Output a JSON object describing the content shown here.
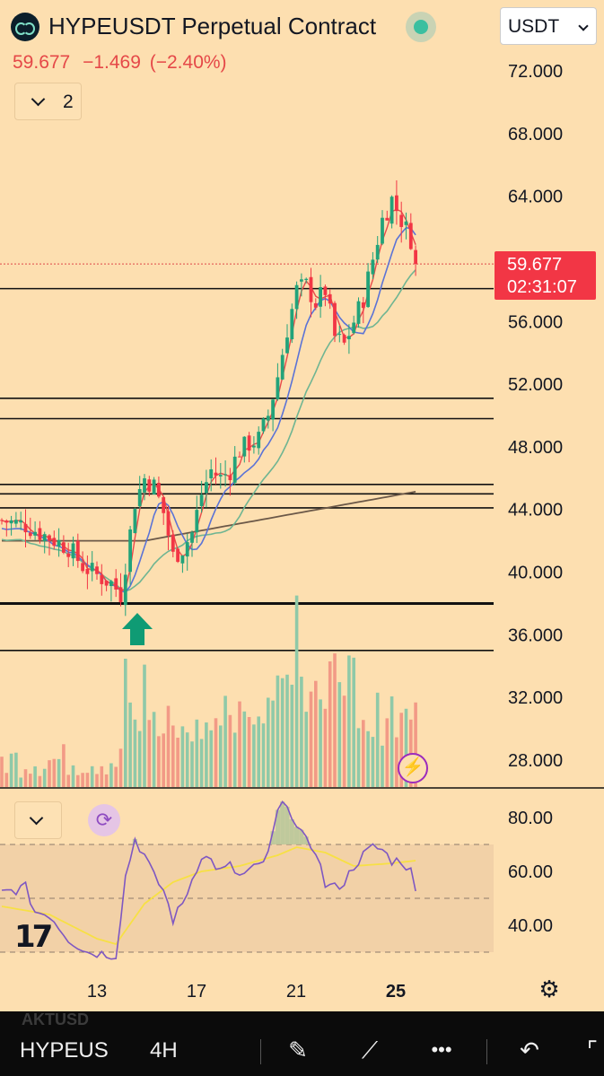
{
  "header": {
    "title": "HYPEUSDT Perpetual Contract",
    "price": "59.677",
    "change": "−1.469",
    "change_pct": "(−2.40%)",
    "currency": "USDT",
    "collapse_count": "2"
  },
  "price_tag": {
    "price": "59.677",
    "countdown": "02:31:07",
    "value": 59.677
  },
  "colors": {
    "bg": "#fddfb0",
    "up": "#22a37a",
    "down": "#f23645",
    "rsi": "#7e57c2",
    "rsi_ma": "#f7e045",
    "ma_fast": "#e84a4a",
    "ma_mid": "#5b73d6",
    "ma_slow": "#6fb592",
    "ma_200": "#6b5848"
  },
  "icons": {
    "logo": "hyperliquid-logo-icon",
    "status": "market-open-dot-icon",
    "bolt": "lightning-icon",
    "refresh": "refresh-icon",
    "settings": "gear-icon"
  },
  "chart_data": [
    {
      "type": "candlestick",
      "title": "HYPEUSDT Perpetual Contract",
      "interval": "4H",
      "y_range": [
        24.8,
        76.0
      ],
      "price_ticks": [
        "72.000",
        "68.000",
        "64.000",
        "56.000",
        "52.000",
        "48.000",
        "44.000",
        "40.000",
        "36.000",
        "32.000",
        "28.000"
      ],
      "x_tick_labels": [
        "13",
        "17",
        "21",
        "25"
      ],
      "last_price": 59.677,
      "horizontal_levels": [
        58.1,
        51.1,
        49.8,
        45.6,
        45.0,
        44.1,
        38.0,
        35.0
      ],
      "anchors": [
        [
          0,
          43.3
        ],
        [
          5,
          43.0
        ],
        [
          10,
          42.2
        ],
        [
          14,
          41.6
        ],
        [
          17,
          40.4
        ],
        [
          20,
          39.8
        ],
        [
          23,
          39.3
        ],
        [
          25,
          38.6
        ],
        [
          26,
          40.5
        ],
        [
          28,
          44.5
        ],
        [
          30,
          46.0
        ],
        [
          32,
          45.5
        ],
        [
          34,
          43.8
        ],
        [
          36,
          41.0
        ],
        [
          38,
          41.5
        ],
        [
          40,
          42.5
        ],
        [
          42,
          45.0
        ],
        [
          44,
          46.5
        ],
        [
          46,
          46.0
        ],
        [
          48,
          46.5
        ],
        [
          50,
          47.8
        ],
        [
          52,
          48.2
        ],
        [
          54,
          48.5
        ],
        [
          56,
          50.0
        ],
        [
          58,
          52.5
        ],
        [
          60,
          55.5
        ],
        [
          62,
          58.0
        ],
        [
          64,
          58.3
        ],
        [
          66,
          57.2
        ],
        [
          68,
          58.0
        ],
        [
          70,
          55.0
        ],
        [
          72,
          54.5
        ],
        [
          74,
          56.0
        ],
        [
          76,
          57.5
        ],
        [
          78,
          60.0
        ],
        [
          80,
          62.5
        ],
        [
          82,
          63.8
        ],
        [
          84,
          62.5
        ],
        [
          86,
          61.3
        ],
        [
          87,
          59.68
        ]
      ],
      "volume": {
        "ticks_hidden": true,
        "spikes": [
          [
            26,
            0.65
          ],
          [
            30,
            0.62
          ],
          [
            62,
            0.97
          ]
        ],
        "max_bar_relative": 1.0
      },
      "indicators": [
        {
          "kind": "ma",
          "length": 9,
          "color": "#e84a4a"
        },
        {
          "kind": "ma",
          "length": 20,
          "color": "#5b73d6"
        },
        {
          "kind": "ma",
          "length": 50,
          "color": "#6fb592"
        },
        {
          "kind": "ma",
          "length": 200,
          "color": "#6b5848"
        }
      ]
    },
    {
      "type": "line",
      "name": "",
      "y_range": [
        25,
        90
      ],
      "ticks": [
        "80.00",
        "60.00",
        "40.00"
      ],
      "band": [
        30,
        70
      ],
      "midline": 50,
      "rsi_anchors": [
        [
          0,
          52
        ],
        [
          5,
          54
        ],
        [
          7,
          45
        ],
        [
          10,
          44
        ],
        [
          14,
          35
        ],
        [
          18,
          30
        ],
        [
          24,
          29
        ],
        [
          26,
          58
        ],
        [
          28,
          72
        ],
        [
          30,
          66
        ],
        [
          32,
          58
        ],
        [
          34,
          53
        ],
        [
          36,
          42
        ],
        [
          38,
          48
        ],
        [
          40,
          57
        ],
        [
          42,
          66
        ],
        [
          44,
          64
        ],
        [
          46,
          60
        ],
        [
          48,
          62
        ],
        [
          50,
          58
        ],
        [
          52,
          60
        ],
        [
          54,
          62
        ],
        [
          56,
          66
        ],
        [
          58,
          82
        ],
        [
          60,
          86
        ],
        [
          62,
          76
        ],
        [
          64,
          71
        ],
        [
          66,
          68
        ],
        [
          68,
          55
        ],
        [
          70,
          54
        ],
        [
          72,
          56
        ],
        [
          74,
          62
        ],
        [
          76,
          66
        ],
        [
          78,
          69
        ],
        [
          80,
          68
        ],
        [
          82,
          64
        ],
        [
          84,
          64
        ],
        [
          86,
          60
        ],
        [
          87,
          52
        ]
      ],
      "ma_anchors": [
        [
          0,
          47
        ],
        [
          10,
          44
        ],
        [
          20,
          35
        ],
        [
          24,
          33
        ],
        [
          30,
          48
        ],
        [
          36,
          56
        ],
        [
          42,
          60
        ],
        [
          50,
          62
        ],
        [
          58,
          66
        ],
        [
          62,
          69
        ],
        [
          68,
          67
        ],
        [
          74,
          62
        ],
        [
          82,
          63
        ],
        [
          87,
          64
        ]
      ]
    }
  ],
  "rsi_panel": {
    "collapse_label": ""
  },
  "bottom_bar": {
    "ghost_symbol": "AKTUSD",
    "symbol": "HYPEUS",
    "interval": "4H",
    "more": "•••"
  }
}
